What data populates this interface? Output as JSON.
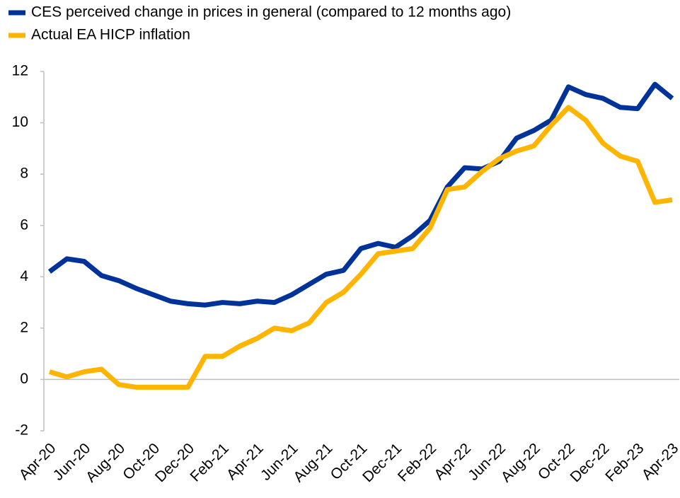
{
  "chart_data": {
    "type": "line",
    "categories": [
      "Apr-20",
      null,
      "Jun-20",
      null,
      "Aug-20",
      null,
      "Oct-20",
      null,
      "Dec-20",
      null,
      "Feb-21",
      null,
      "Apr-21",
      null,
      "Jun-21",
      null,
      "Aug-21",
      null,
      "Oct-21",
      null,
      "Dec-21",
      null,
      "Feb-22",
      null,
      "Apr-22",
      null,
      "Jun-22",
      null,
      "Aug-22",
      null,
      "Oct-22",
      null,
      "Dec-22",
      null,
      "Feb-23",
      null,
      "Apr-23"
    ],
    "series": [
      {
        "name": "CES perceived change in prices in general (compared to 12 months ago)",
        "color": "#003399",
        "values": [
          4.2,
          4.7,
          4.6,
          4.05,
          3.85,
          3.55,
          3.3,
          3.05,
          2.95,
          2.9,
          3.0,
          2.95,
          3.05,
          3.0,
          3.3,
          3.7,
          4.1,
          4.25,
          5.1,
          5.3,
          5.15,
          5.6,
          6.2,
          7.5,
          8.25,
          8.2,
          8.5,
          9.4,
          9.7,
          10.1,
          11.4,
          11.1,
          10.95,
          10.6,
          10.55,
          11.5,
          10.95
        ]
      },
      {
        "name": "Actual EA HICP inflation",
        "color": "#ffb400",
        "values": [
          0.3,
          0.1,
          0.3,
          0.4,
          -0.2,
          -0.3,
          -0.3,
          -0.3,
          -0.3,
          0.9,
          0.9,
          1.3,
          1.6,
          2.0,
          1.9,
          2.2,
          3.0,
          3.4,
          4.1,
          4.9,
          5.0,
          5.1,
          5.9,
          7.4,
          7.5,
          8.1,
          8.6,
          8.9,
          9.1,
          9.9,
          10.6,
          10.1,
          9.2,
          8.7,
          8.5,
          6.9,
          7.0
        ]
      }
    ],
    "ylim": [
      -2,
      12
    ],
    "yticks": [
      -2,
      0,
      2,
      4,
      6,
      8,
      10,
      12
    ],
    "grid": false,
    "legend": "top-left"
  }
}
